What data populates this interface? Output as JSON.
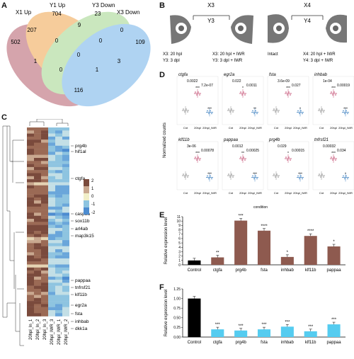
{
  "panels": {
    "A": "A",
    "B": "B",
    "C": "C",
    "D": "D",
    "E": "E",
    "F": "F"
  },
  "venn": {
    "sets": [
      {
        "name": "X1 Up",
        "color": "#b35a6a"
      },
      {
        "name": "Y1 Up",
        "color": "#f0a44a"
      },
      {
        "name": "Y3 Down",
        "color": "#9fd58a"
      },
      {
        "name": "X3 Down",
        "color": "#6fb0e8"
      }
    ],
    "counts": {
      "x1_only": "502",
      "y1_only": "704",
      "y3_only": "23",
      "x3_only": "109",
      "x1_y1": "207",
      "y1_y3": "9",
      "y3_x3": "0",
      "x1_y1_y3": "0",
      "y1_y3_x3": "0",
      "all": "0",
      "x1_y3": "1",
      "y1_x3": "3",
      "x1_y1_x3": "0",
      "x1_y3_x3": "1",
      "x1_x3": "116"
    }
  },
  "schematic": {
    "x3": "X3",
    "y3": "Y3",
    "x4": "X4",
    "y4": "Y4",
    "left_a": "X3: 20 hpl",
    "left_b": "Y3:   3 dpl",
    "mid_a": "X3: 20 hpl + IWR",
    "mid_b": "Y3:   3 dpl + IWR",
    "intact": "Intact",
    "right_a": "X4: 20 hpl + IWR",
    "right_b": "Y4:   3 dpl + IWR"
  },
  "heatmap": {
    "columns": [
      "20hpl_ln_1",
      "20hpl_ln_2",
      "20hpl_ln_3",
      "20hpl_IWR_3",
      "20hpl_IWR_1",
      "20hpl_IWR_2"
    ],
    "genes": [
      "prg4b",
      "hif1al",
      "ctgfa",
      "casp3a",
      "sox11b",
      "arl4ab",
      "map3k15",
      "pappaa",
      "tnfrsf21",
      "klf11b",
      "egr2a",
      "fsta",
      "inhbab",
      "dkk1a"
    ],
    "legend": [
      "2",
      "1",
      "0",
      "-1",
      "-2"
    ]
  },
  "dot_plots": {
    "ylabel": "Normalized counts",
    "xlabel": "condition",
    "groups": [
      "Cnt",
      "20hpl",
      "20hpl_IWR"
    ],
    "genes": [
      {
        "name": "ctgfa",
        "p_top": "0.0022",
        "p_right": "7.2e-07",
        "stars": [
          "***",
          "***"
        ]
      },
      {
        "name": "egr2a",
        "p_top": "0.022",
        "p_right": "0.0011",
        "stars": [
          "*",
          "**"
        ]
      },
      {
        "name": "fsta",
        "p_top": "3.6e-09",
        "p_right": "0.027",
        "stars": [
          "***",
          "*"
        ]
      },
      {
        "name": "inhbab",
        "p_top": "1e-04",
        "p_right": "0.00019",
        "stars": [
          "***",
          "***"
        ]
      },
      {
        "name": "klf11b",
        "p_top": "3e-06",
        "p_right": "0.00078",
        "stars": [
          "***",
          "***"
        ]
      },
      {
        "name": "pappaa",
        "p_top": "0.0012",
        "p_right": "0.00025",
        "stars": [
          "**",
          "***"
        ]
      },
      {
        "name": "prg4b",
        "p_top": "0.029",
        "p_right": "0.00015",
        "stars": [
          "*",
          "***"
        ]
      },
      {
        "name": "tnfrsf21",
        "p_top": "0.00032",
        "p_right": "0.034",
        "stars": [
          "***",
          "*"
        ]
      }
    ]
  },
  "chart_data": [
    {
      "type": "bar",
      "ylabel": "Relative expression level",
      "categories": [
        "Control",
        "ctgfa",
        "prg4b",
        "fsta",
        "inhbab",
        "klf11b",
        "pappaa"
      ],
      "values": [
        1,
        1.7,
        10.1,
        7.8,
        1.8,
        6.6,
        4.2
      ],
      "stars": [
        "",
        "**",
        "***",
        "****",
        "*",
        "****",
        "*"
      ],
      "ylim": [
        0,
        11
      ],
      "ticks": [
        0,
        1,
        2,
        3,
        4,
        5,
        6,
        7,
        8,
        9,
        10,
        11
      ],
      "colors": [
        "#000000",
        "#8e5a4f",
        "#8e5a4f",
        "#8e5a4f",
        "#8e5a4f",
        "#8e5a4f",
        "#8e5a4f"
      ]
    },
    {
      "type": "bar",
      "ylabel": "Relative expression level",
      "categories": [
        "Control",
        "ctgfa",
        "prg4b",
        "fsta",
        "inhbab",
        "klf11b",
        "pappaa"
      ],
      "values": [
        1.0,
        0.2,
        0.17,
        0.2,
        0.27,
        0.15,
        0.33
      ],
      "stars": [
        "",
        "***",
        "***",
        "***",
        "***",
        "***",
        "***"
      ],
      "ylim": [
        0,
        1.25
      ],
      "ticks": [
        "0.00",
        "0.25",
        "0.50",
        "0.75",
        "1.00",
        "1.25"
      ],
      "colors": [
        "#000000",
        "#55ccf0",
        "#55ccf0",
        "#55ccf0",
        "#55ccf0",
        "#55ccf0",
        "#55ccf0"
      ]
    }
  ]
}
